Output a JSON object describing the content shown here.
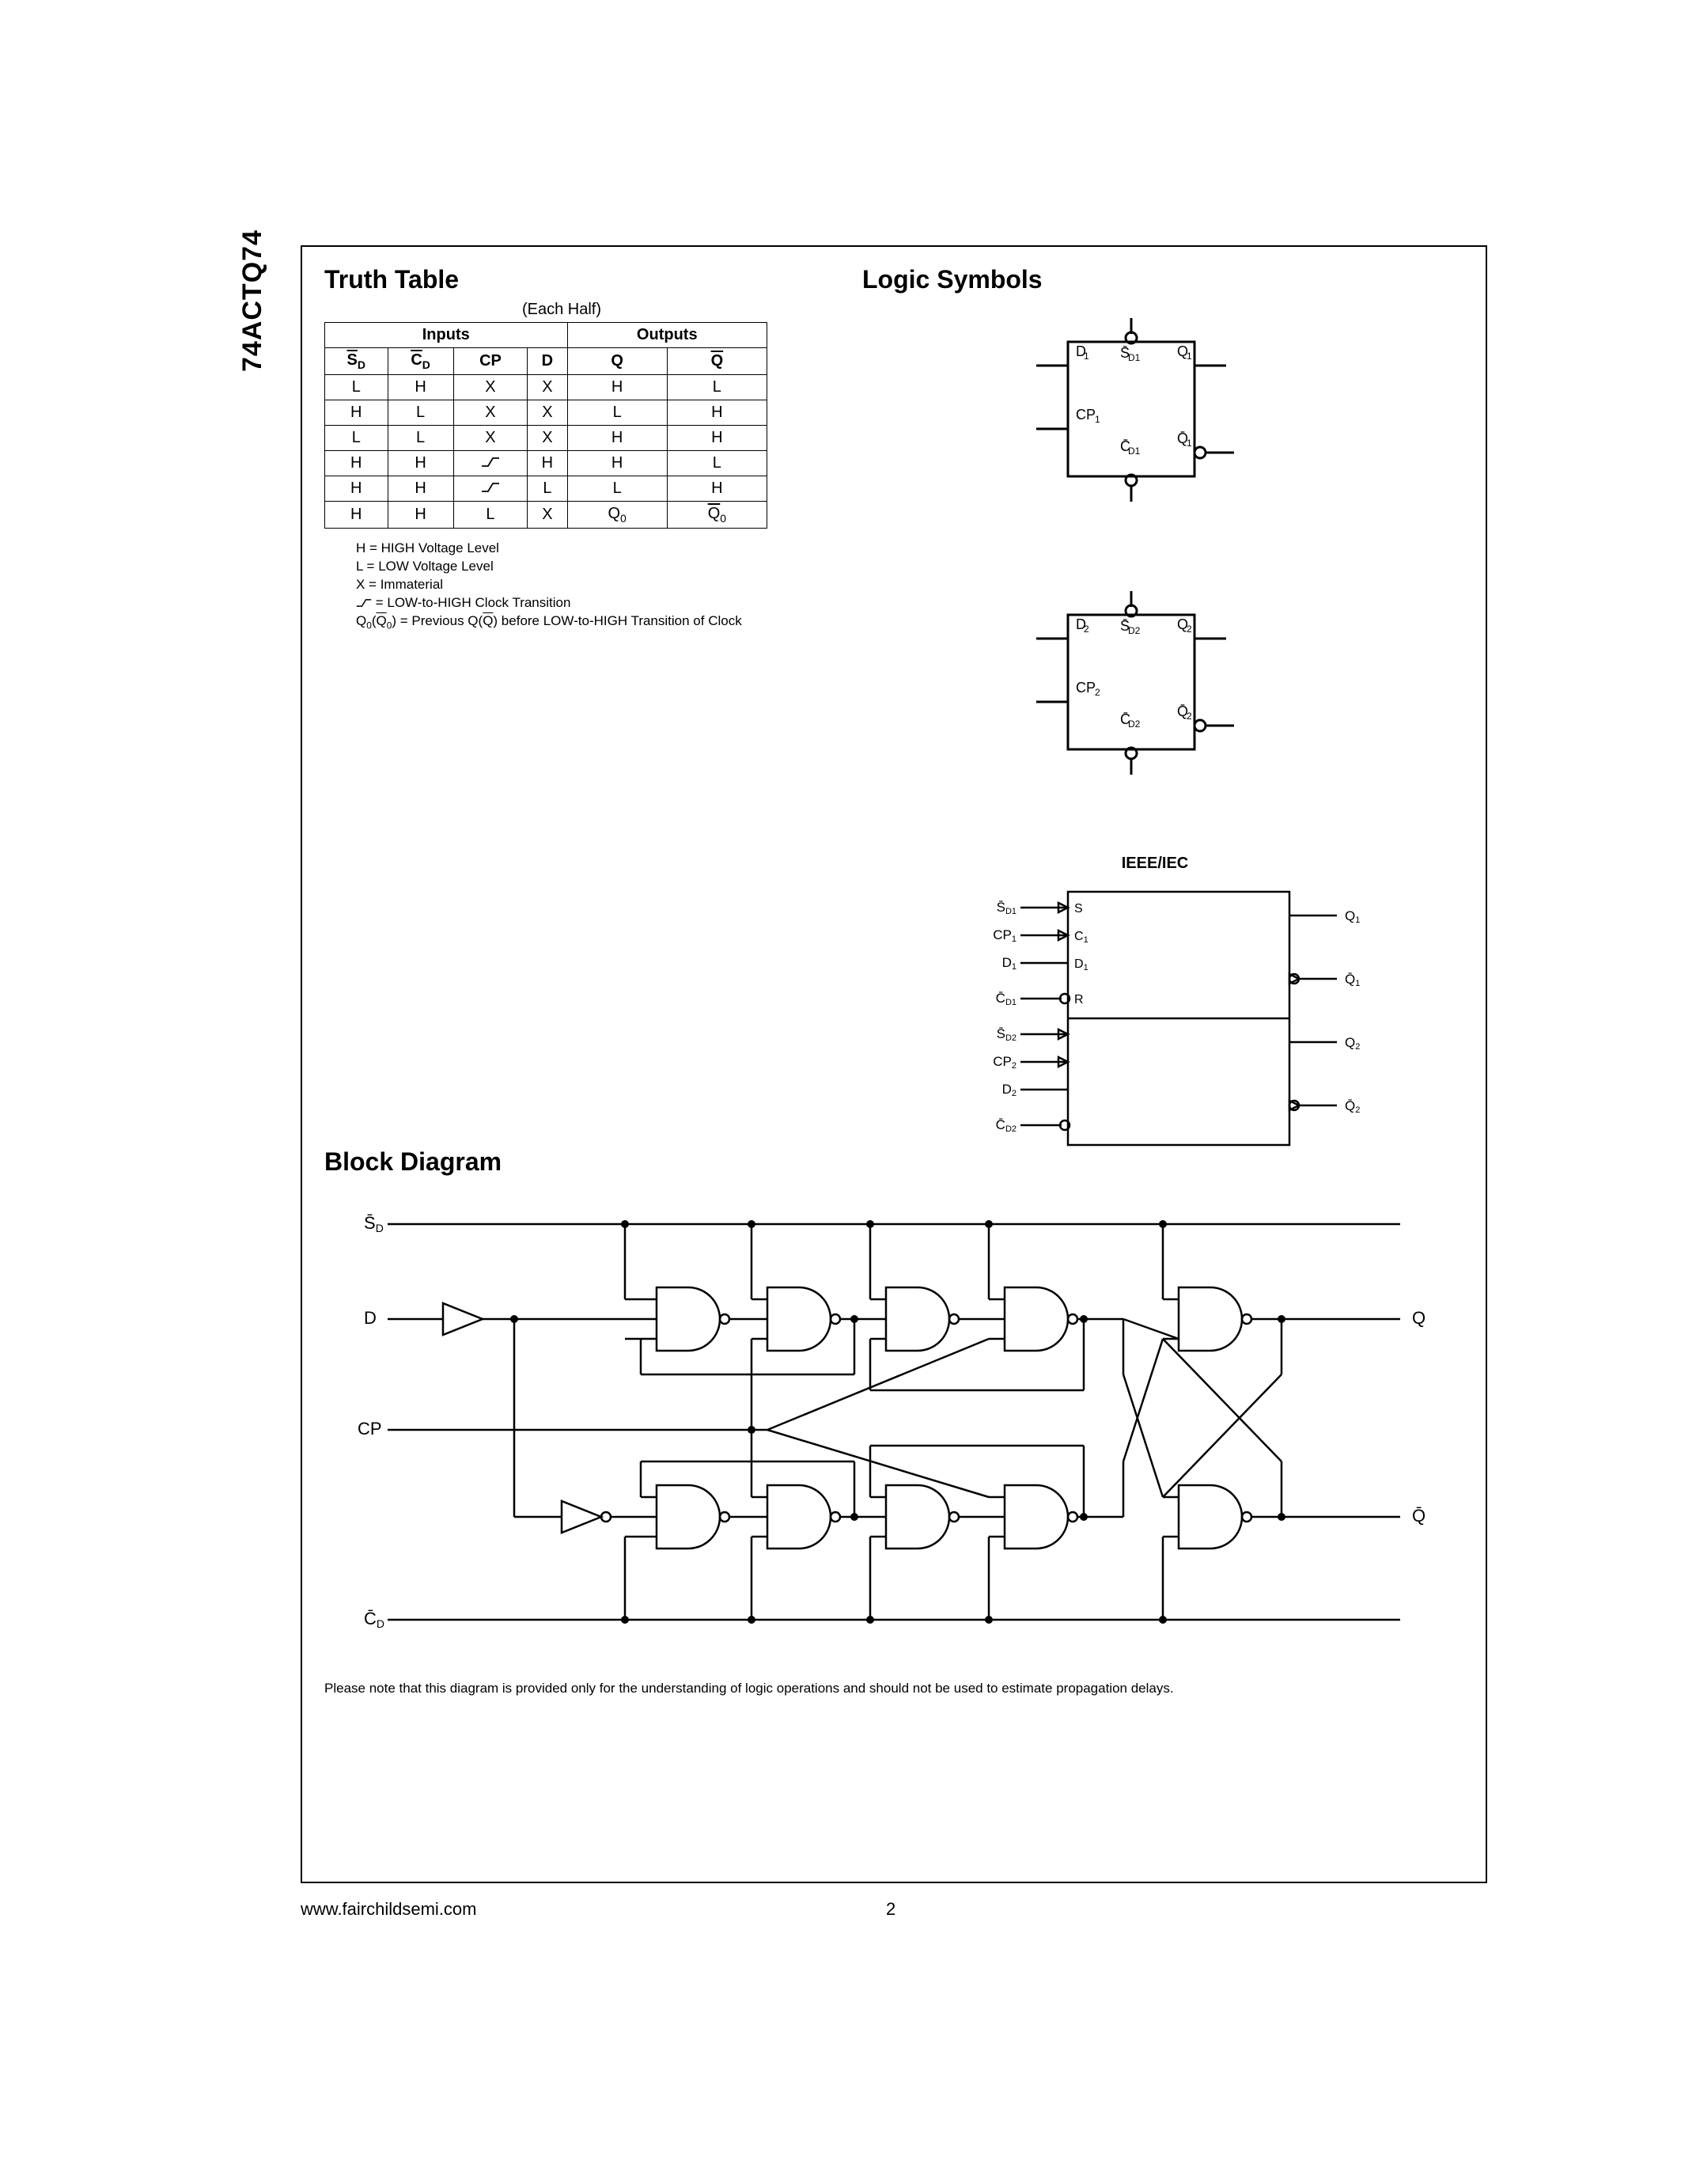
{
  "part_number": "74ACTQ74",
  "truth_table": {
    "title": "Truth Table",
    "caption": "(Each Half)",
    "group_headers": [
      "Inputs",
      "Outputs"
    ],
    "columns": {
      "sd": "S",
      "sd_sub": "D",
      "cd": "C",
      "cd_sub": "D",
      "cp": "CP",
      "d": "D",
      "q": "Q",
      "qbar": "Q"
    },
    "rows": [
      {
        "sd": "L",
        "cd": "H",
        "cp": "X",
        "d": "X",
        "q": "H",
        "qb": "L",
        "rise": false
      },
      {
        "sd": "H",
        "cd": "L",
        "cp": "X",
        "d": "X",
        "q": "L",
        "qb": "H",
        "rise": false
      },
      {
        "sd": "L",
        "cd": "L",
        "cp": "X",
        "d": "X",
        "q": "H",
        "qb": "H",
        "rise": false
      },
      {
        "sd": "H",
        "cd": "H",
        "cp": "",
        "d": "H",
        "q": "H",
        "qb": "L",
        "rise": true
      },
      {
        "sd": "H",
        "cd": "H",
        "cp": "",
        "d": "L",
        "q": "L",
        "qb": "H",
        "rise": true
      },
      {
        "sd": "H",
        "cd": "H",
        "cp": "L",
        "d": "X",
        "q": "Q0",
        "qb": "Q0",
        "rise": false,
        "q0": true
      }
    ],
    "legend": [
      "H = HIGH Voltage Level",
      "L = LOW Voltage Level",
      "X = Immaterial",
      "↗ = LOW-to-HIGH Clock Transition",
      "Q₀(Q̄₀) = Previous Q(Q̄) before LOW-to-HIGH Transition of Clock"
    ]
  },
  "logic_symbols": {
    "title": "Logic Symbols",
    "ieee_label": "IEEE/IEC",
    "box1": {
      "pins_left": [
        "D₁",
        "CP₁"
      ],
      "top": "S̄D1",
      "bottom": "C̄D1",
      "pins_right": [
        "Q₁",
        "Q̄₁"
      ]
    },
    "box2": {
      "pins_left": [
        "D₂",
        "CP₂"
      ],
      "top": "S̄D2",
      "bottom": "C̄D2",
      "pins_right": [
        "Q₂",
        "Q̄₂"
      ]
    },
    "ieee_box": {
      "left": [
        "S̄D1",
        "CP₁",
        "D₁",
        "C̄D1",
        "S̄D2",
        "CP₂",
        "D₂",
        "C̄D2"
      ],
      "inner": [
        "S",
        "C₁",
        "D₁",
        "R"
      ],
      "right": [
        "Q₁",
        "Q̄₁",
        "Q₂",
        "Q̄₂"
      ]
    }
  },
  "block_diagram": {
    "title": "Block Diagram",
    "inputs": [
      "S̄D",
      "D",
      "CP",
      "C̄D"
    ],
    "outputs": [
      "Q",
      "Q̄"
    ],
    "note": "Please note that this diagram is provided only for the understanding of logic operations and should not be used to estimate propagation delays."
  },
  "footer": {
    "url": "www.fairchildsemi.com",
    "page": "2"
  },
  "style": {
    "border_color": "#000000",
    "background": "#ffffff",
    "title_fontsize": 32,
    "body_fontsize": 20,
    "legend_fontsize": 17,
    "stroke_width": 2
  }
}
